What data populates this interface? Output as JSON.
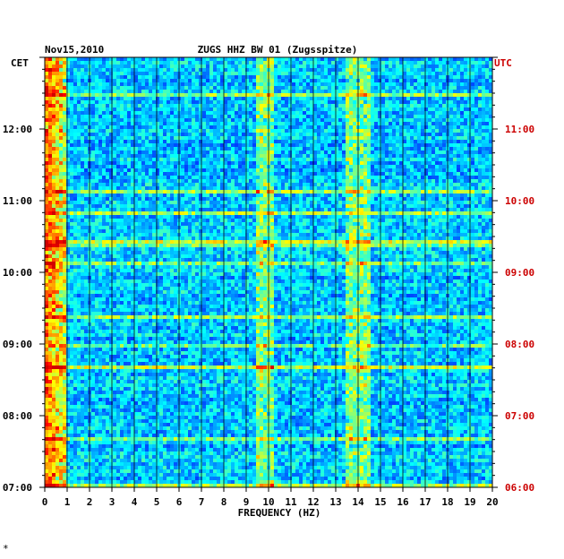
{
  "header": {
    "date": "Nov15,2010",
    "station": "ZUGS HHZ BW 01 (Zugsspitze)",
    "left_zone": "CET",
    "right_zone": "UTC"
  },
  "footer_mark": "*",
  "colors": {
    "left_labels": "#000000",
    "right_labels": "#cc0000",
    "background_low": "#00007f",
    "gridlines": "#000000"
  },
  "chart_data": {
    "type": "heatmap",
    "title": "ZUGS HHZ BW 01 (Zugsspitze)",
    "xlabel": "FREQUENCY (HZ)",
    "ylabel": "",
    "x_range": [
      0,
      20
    ],
    "x_ticks": [
      "0",
      "1",
      "2",
      "3",
      "4",
      "5",
      "6",
      "7",
      "8",
      "9",
      "10",
      "11",
      "12",
      "13",
      "14",
      "15",
      "16",
      "17",
      "18",
      "19",
      "20"
    ],
    "y_left_ticks": [
      "12:00",
      "11:00",
      "10:00",
      "09:00",
      "08:00",
      "07:00"
    ],
    "y_right_ticks": [
      "11:00",
      "10:00",
      "09:00",
      "08:00",
      "07:00",
      "06:00"
    ],
    "y_left_range": [
      "07:00",
      "13:00"
    ],
    "y_right_range": [
      "06:00",
      "12:00"
    ],
    "colormap": "jet",
    "vertical_grid": true,
    "notable_bands": [
      {
        "freq_hz": [
          0,
          1
        ],
        "description": "strong low-frequency energy"
      },
      {
        "freq_hz": [
          9.5,
          10.3
        ],
        "description": "persistent energy band"
      },
      {
        "freq_hz": [
          13.5,
          14.5
        ],
        "description": "intermittent bursts"
      }
    ]
  }
}
